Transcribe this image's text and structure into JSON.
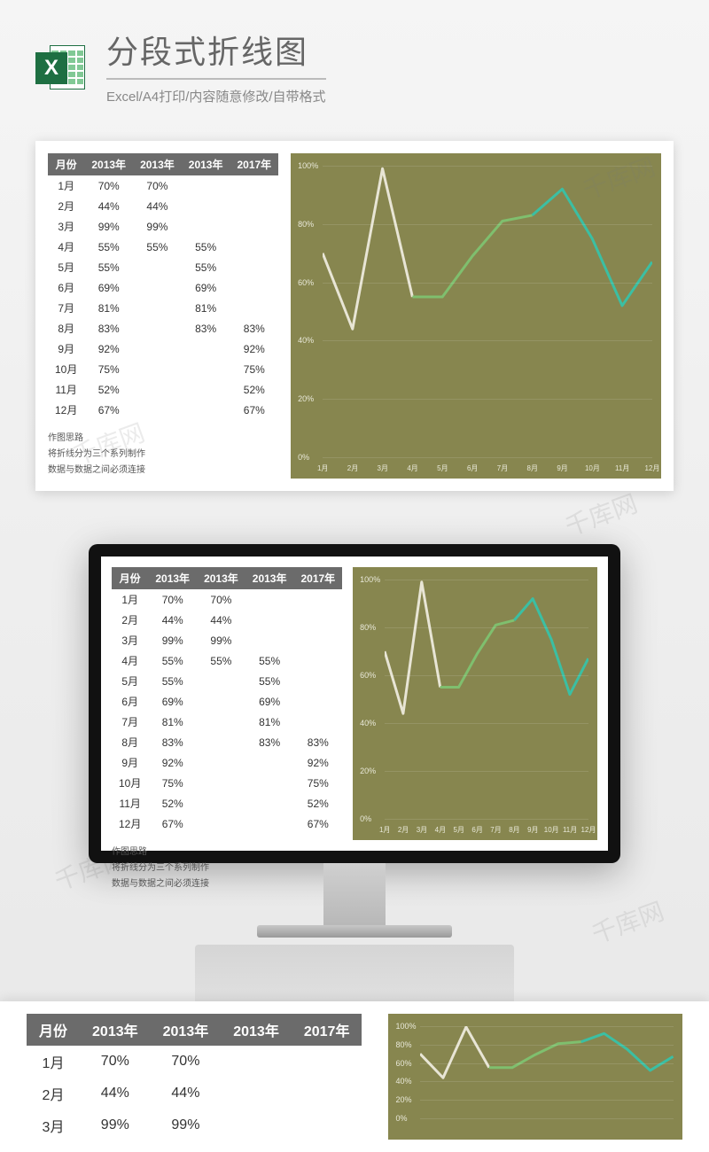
{
  "header": {
    "title": "分段式折线图",
    "subtitle": "Excel/A4打印/内容随意修改/自带格式",
    "icon_letter": "X"
  },
  "table": {
    "headers": [
      "月份",
      "2013年",
      "2013年",
      "2013年",
      "2017年"
    ],
    "rows": [
      [
        "1月",
        "70%",
        "70%",
        "",
        ""
      ],
      [
        "2月",
        "44%",
        "44%",
        "",
        ""
      ],
      [
        "3月",
        "99%",
        "99%",
        "",
        ""
      ],
      [
        "4月",
        "55%",
        "55%",
        "55%",
        ""
      ],
      [
        "5月",
        "55%",
        "",
        "55%",
        ""
      ],
      [
        "6月",
        "69%",
        "",
        "69%",
        ""
      ],
      [
        "7月",
        "81%",
        "",
        "81%",
        ""
      ],
      [
        "8月",
        "83%",
        "",
        "83%",
        "83%"
      ],
      [
        "9月",
        "92%",
        "",
        "",
        "92%"
      ],
      [
        "10月",
        "75%",
        "",
        "",
        "75%"
      ],
      [
        "11月",
        "52%",
        "",
        "",
        "52%"
      ],
      [
        "12月",
        "67%",
        "",
        "",
        "67%"
      ]
    ]
  },
  "notes": {
    "line1": "作图思路",
    "line2": "将折线分为三个系列制作",
    "line3": "数据与数据之间必须连接"
  },
  "chart": {
    "type": "line",
    "background_color": "#87864f",
    "grid_color": "rgba(255,255,255,0.12)",
    "axis_text_color": "#e8e8d8",
    "ylim": [
      0,
      100
    ],
    "yticks": [
      0,
      20,
      40,
      60,
      80,
      100
    ],
    "ytick_labels": [
      "0%",
      "20%",
      "40%",
      "60%",
      "80%",
      "100%"
    ],
    "x_categories": [
      "1月",
      "2月",
      "3月",
      "4月",
      "5月",
      "6月",
      "7月",
      "8月",
      "9月",
      "10月",
      "11月",
      "12月"
    ],
    "series": [
      {
        "name": "seg1",
        "color": "#e8e5d5",
        "width": 3,
        "points": [
          [
            0,
            70
          ],
          [
            1,
            44
          ],
          [
            2,
            99
          ],
          [
            3,
            55
          ]
        ]
      },
      {
        "name": "seg2",
        "color": "#7fbf6e",
        "width": 3,
        "points": [
          [
            3,
            55
          ],
          [
            4,
            55
          ],
          [
            5,
            69
          ],
          [
            6,
            81
          ],
          [
            7,
            83
          ]
        ]
      },
      {
        "name": "seg3",
        "color": "#3bbfa3",
        "width": 3,
        "points": [
          [
            7,
            83
          ],
          [
            8,
            92
          ],
          [
            9,
            75
          ],
          [
            10,
            52
          ],
          [
            11,
            67
          ]
        ]
      }
    ],
    "axis_fontsize": 9
  },
  "watermark_text": "千库网",
  "monitor": {
    "bezel_color": "#111111",
    "stand_color": "#c0c0c0"
  }
}
